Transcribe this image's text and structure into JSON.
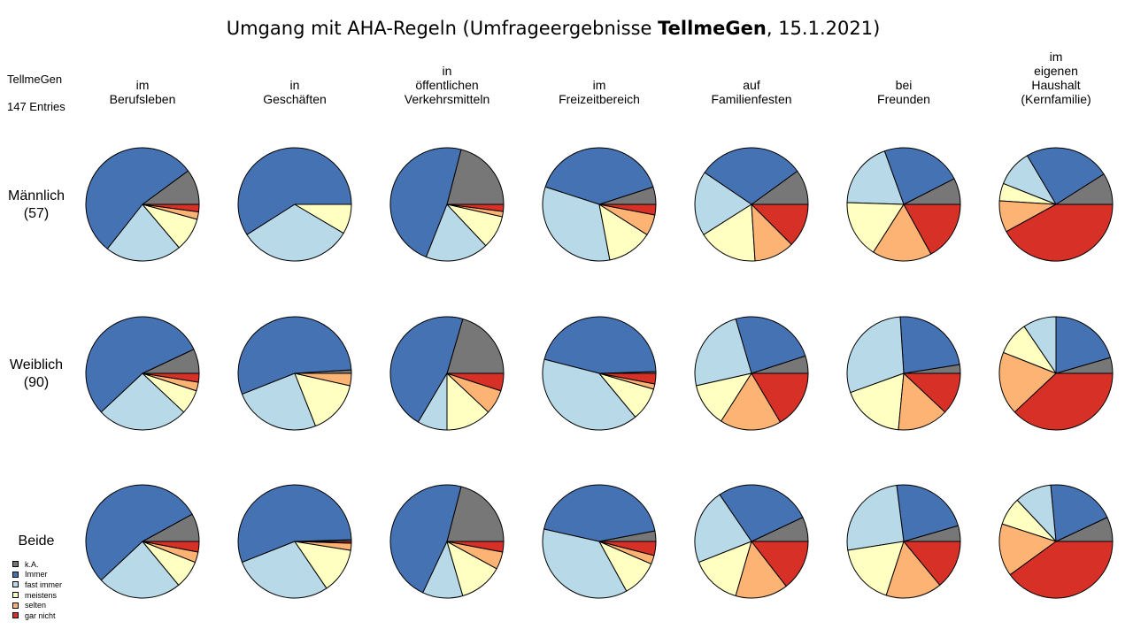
{
  "title": {
    "prefix": "Umgang mit AHA-Regeln (Umfrageergebnisse ",
    "bold": "TellmeGen",
    "suffix": ", 15.1.2021)"
  },
  "source": "TellmeGen",
  "entries": "147 Entries",
  "columns": [
    {
      "lines": [
        "im",
        "Berufsleben"
      ]
    },
    {
      "lines": [
        "in",
        "Geschäften"
      ]
    },
    {
      "lines": [
        "in",
        "öffentlichen",
        "Verkehrsmitteln"
      ]
    },
    {
      "lines": [
        "im",
        "Freizeitbereich"
      ]
    },
    {
      "lines": [
        "auf",
        "Familienfesten"
      ]
    },
    {
      "lines": [
        "bei",
        "Freunden"
      ]
    },
    {
      "lines": [
        "im",
        "eigenen",
        "Haushalt",
        "(Kernfamilie)"
      ]
    }
  ],
  "rows": [
    {
      "lines": [
        "Männlich",
        "(57)"
      ]
    },
    {
      "lines": [
        "Weiblich",
        "(90)"
      ]
    },
    {
      "lines": [
        "Beide"
      ]
    }
  ],
  "legend": [
    {
      "label": "k.A.",
      "color": "#777777"
    },
    {
      "label": "Immer",
      "color": "#4572B2"
    },
    {
      "label": "fast immer",
      "color": "#B8D9E8"
    },
    {
      "label": "meistens",
      "color": "#FFFFC2"
    },
    {
      "label": "selten",
      "color": "#FDB373"
    },
    {
      "label": "gar nicht",
      "color": "#D73027"
    }
  ],
  "chart_data": {
    "type": "pie",
    "slice_order": [
      "k.A.",
      "Immer",
      "fast immer",
      "meistens",
      "selten",
      "gar nicht"
    ],
    "unit": "Prozent (geschätzt)",
    "grid": [
      [
        {
          "row": "Männlich (57)",
          "column": "im Berufsleben",
          "values": [
            9.5,
            51.0,
            20.5,
            9.0,
            2.0,
            2.0
          ]
        },
        {
          "row": "Männlich (57)",
          "column": "in Geschäften",
          "values": [
            0,
            59.0,
            32.5,
            8.5,
            0,
            0
          ]
        },
        {
          "row": "Männlich (57)",
          "column": "in öffentlichen Verkehrsmitteln",
          "values": [
            21.0,
            48.0,
            18.0,
            9.5,
            1.5,
            2.0
          ]
        },
        {
          "row": "Männlich (57)",
          "column": "im Freizeitbereich",
          "values": [
            5.0,
            40.0,
            33.0,
            13.0,
            6.0,
            3.0
          ]
        },
        {
          "row": "Männlich (57)",
          "column": "auf Familienfesten",
          "values": [
            10.0,
            30.5,
            18.5,
            17.0,
            11.5,
            12.5
          ]
        },
        {
          "row": "Männlich (57)",
          "column": "bei Freunden",
          "values": [
            7.5,
            23.0,
            19.0,
            16.5,
            17.0,
            17.0
          ]
        },
        {
          "row": "Männlich (57)",
          "column": "im eigenen Haushalt (Kernfamilie)",
          "values": [
            9.0,
            24.5,
            10.5,
            5.0,
            9.0,
            42.0
          ]
        }
      ],
      [
        {
          "row": "Weiblich (90)",
          "column": "im Berufsleben",
          "values": [
            7.0,
            55.0,
            26.0,
            7.0,
            2.5,
            2.5
          ]
        },
        {
          "row": "Weiblich (90)",
          "column": "in Geschäften",
          "values": [
            1.0,
            55.0,
            25.0,
            15.5,
            3.5,
            0
          ]
        },
        {
          "row": "Weiblich (90)",
          "column": "in öffentlichen Verkehrsmitteln",
          "values": [
            20.5,
            46.0,
            8.5,
            13.0,
            7.0,
            5.0
          ]
        },
        {
          "row": "Weiblich (90)",
          "column": "im Freizeitbereich",
          "values": [
            0.5,
            45.5,
            40.0,
            9.5,
            1.5,
            3.0
          ]
        },
        {
          "row": "Weiblich (90)",
          "column": "auf Familienfesten",
          "values": [
            5.0,
            24.5,
            24.0,
            12.5,
            17.5,
            16.5
          ]
        },
        {
          "row": "Weiblich (90)",
          "column": "bei Freunden",
          "values": [
            2.5,
            23.5,
            29.5,
            18.0,
            14.5,
            12.0
          ]
        },
        {
          "row": "Weiblich (90)",
          "column": "im eigenen Haushalt (Kernfamilie)",
          "values": [
            4.5,
            20.5,
            9.5,
            9.5,
            18.0,
            38.0
          ]
        }
      ],
      [
        {
          "row": "Beide",
          "column": "im Berufsleben",
          "values": [
            8.0,
            54.0,
            24.0,
            8.0,
            3.0,
            3.0
          ]
        },
        {
          "row": "Beide",
          "column": "in Geschäften",
          "values": [
            0.5,
            55.5,
            28.5,
            13.0,
            2.0,
            0.5
          ]
        },
        {
          "row": "Beide",
          "column": "in öffentlichen Verkehrsmitteln",
          "values": [
            21.0,
            47.0,
            11.5,
            12.5,
            5.0,
            3.0
          ]
        },
        {
          "row": "Beide",
          "column": "im Freizeitbereich",
          "values": [
            3.0,
            43.5,
            36.5,
            10.5,
            2.5,
            4.0
          ]
        },
        {
          "row": "Beide",
          "column": "auf Familienfesten",
          "values": [
            7.0,
            27.5,
            21.5,
            14.5,
            15.0,
            14.5
          ]
        },
        {
          "row": "Beide",
          "column": "bei Freunden",
          "values": [
            4.5,
            22.5,
            25.5,
            17.5,
            16.0,
            14.0
          ]
        },
        {
          "row": "Beide",
          "column": "im eigenen Haushalt (Kernfamilie)",
          "values": [
            7.0,
            19.5,
            10.5,
            8.0,
            15.0,
            40.0
          ]
        }
      ]
    ]
  }
}
